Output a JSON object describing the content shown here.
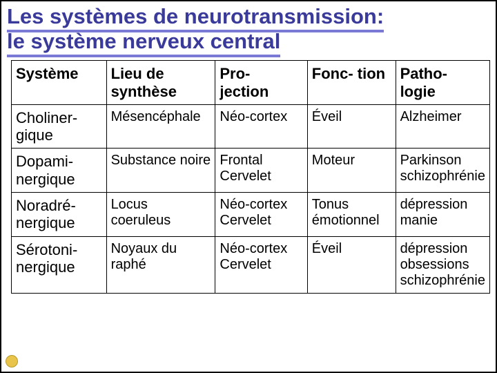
{
  "title_line1": "Les systèmes de neurotransmission:",
  "title_line2": "le système nerveux central",
  "headers": {
    "c0": "Système",
    "c1": "Lieu de synthèse",
    "c2": "Pro-\njection",
    "c3": "Fonc-\ntion",
    "c4": "Patho-\nlogie"
  },
  "rows": [
    {
      "sys": "Choliner-\ngique",
      "lieu": "Mésencéphale",
      "proj": "Néo-cortex",
      "fonc": "Éveil",
      "path": "Alzheimer"
    },
    {
      "sys": "Dopami-\nnergique",
      "lieu": "Substance noire",
      "proj": "Frontal Cervelet",
      "fonc": "Moteur",
      "path": "Parkinson schizophrénie"
    },
    {
      "sys": "Noradré-\nnergique",
      "lieu": "Locus coeruleus",
      "proj": "Néo-cortex Cervelet",
      "fonc": "Tonus émotionnel",
      "path": "dépression manie"
    },
    {
      "sys": "Sérotoni-\nnergique",
      "lieu": "Noyaux du raphé",
      "proj": "Néo-cortex Cervelet",
      "fonc": "Éveil",
      "path": "dépression obsessions schizophrénie"
    }
  ],
  "style": {
    "title_color": "#3a3a9a",
    "underline_color": "#7a7ad6",
    "border_color": "#000000",
    "background": "#ffffff",
    "title_fontsize_pt": 24,
    "header_fontsize_pt": 17,
    "cell_fontsize_pt": 15,
    "corner_dot_color": "#e8c44a"
  }
}
